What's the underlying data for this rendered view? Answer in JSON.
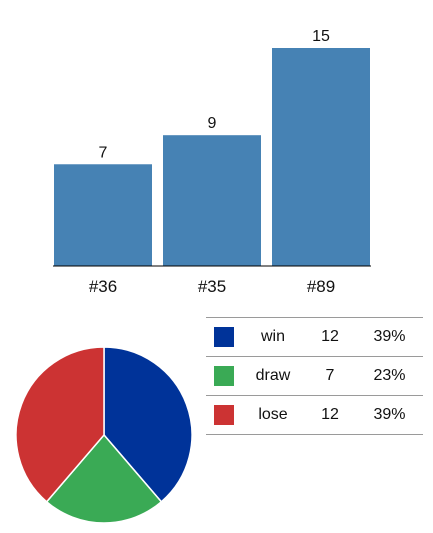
{
  "chart_data": [
    {
      "type": "bar",
      "categories": [
        "#36",
        "#35",
        "#89"
      ],
      "values": [
        7,
        9,
        15
      ],
      "color": "#4682b4",
      "title": "",
      "xlabel": "",
      "ylabel": "",
      "ylim": [
        0,
        15
      ],
      "grid": false
    },
    {
      "type": "pie",
      "slices": [
        {
          "label": "win",
          "value": 12,
          "percent": "39%",
          "color": "#003399"
        },
        {
          "label": "draw",
          "value": 7,
          "percent": "23%",
          "color": "#3aaa55"
        },
        {
          "label": "lose",
          "value": 12,
          "percent": "39%",
          "color": "#cc3333"
        }
      ],
      "legend": "right"
    }
  ]
}
